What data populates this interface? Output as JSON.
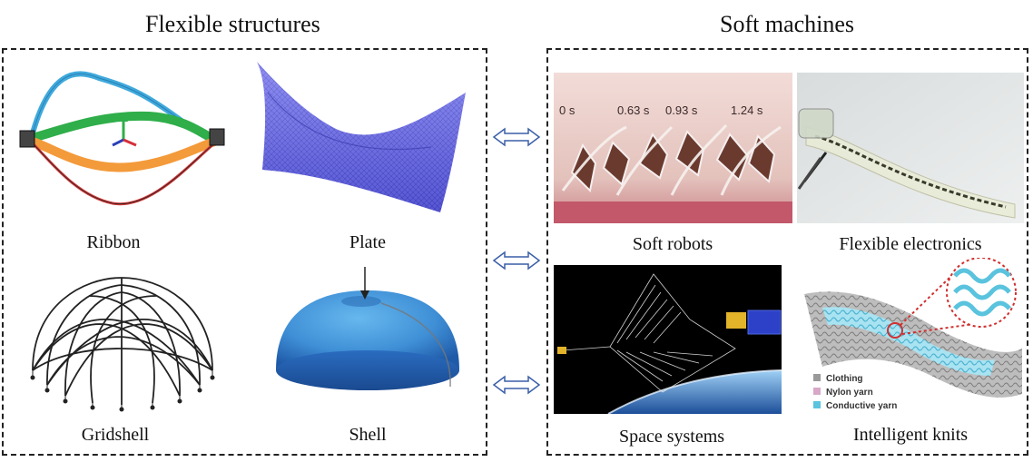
{
  "left_panel": {
    "title": "Flexible structures",
    "items": [
      {
        "label": "Ribbon"
      },
      {
        "label": "Plate"
      },
      {
        "label": "Gridshell"
      },
      {
        "label": "Shell"
      }
    ]
  },
  "right_panel": {
    "title": "Soft machines",
    "items": [
      {
        "label": "Soft robots",
        "timestamps": [
          "0 s",
          "0.63 s",
          "0.93 s",
          "1.24 s"
        ]
      },
      {
        "label": "Flexible electronics"
      },
      {
        "label": "Space systems"
      },
      {
        "label": "Intelligent knits",
        "legend": [
          "Clothing",
          "Nylon yarn",
          "Conductive yarn"
        ]
      }
    ]
  },
  "colors": {
    "plate": "#6a6af0",
    "shell": "#3f8fd6",
    "arrow": "#3a5fa8",
    "robot_bg": "#e9c9c4",
    "space_bg": "#000000",
    "knit_yarn": "#7fd0e6"
  }
}
